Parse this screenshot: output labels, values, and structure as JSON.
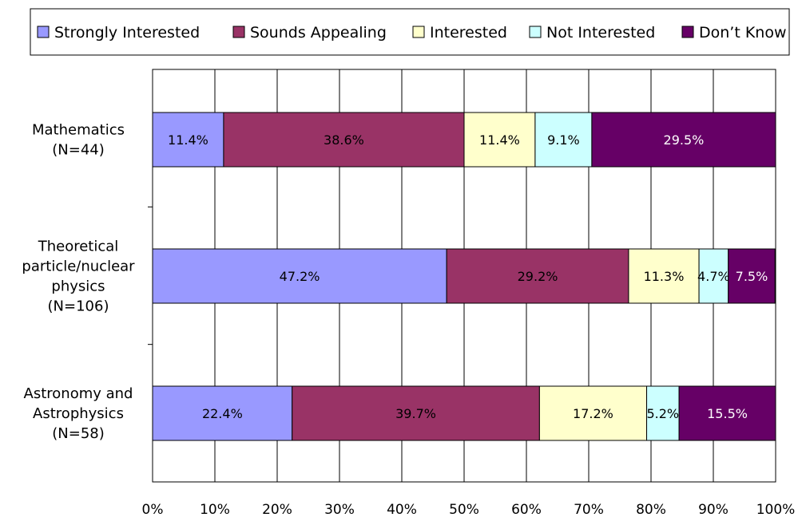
{
  "chart_data": {
    "type": "bar",
    "orientation": "horizontal",
    "stacked": true,
    "categories": [
      [
        "Mathematics",
        "(N=44)"
      ],
      [
        "Theoretical",
        "particle/nuclear",
        "physics",
        "(N=106)"
      ],
      [
        "Astronomy and",
        "Astrophysics",
        "(N=58)"
      ]
    ],
    "series": [
      {
        "name": "Strongly Interested",
        "color": "#9999ff",
        "values": [
          11.4,
          47.2,
          22.4
        ],
        "labels": [
          "11.4%",
          "47.2%",
          "22.4%"
        ]
      },
      {
        "name": "Sounds Appealing",
        "color": "#993366",
        "values": [
          38.6,
          29.2,
          39.7
        ],
        "labels": [
          "38.6%",
          "29.2%",
          "39.7%"
        ]
      },
      {
        "name": "Interested",
        "color": "#ffffcc",
        "values": [
          11.4,
          11.3,
          17.2
        ],
        "labels": [
          "11.4%",
          "11.3%",
          "17.2%"
        ]
      },
      {
        "name": "Not Interested",
        "color": "#ccffff",
        "values": [
          9.1,
          4.7,
          5.2
        ],
        "labels": [
          "9.1%",
          "4.7%",
          "5.2%"
        ]
      },
      {
        "name": "Don’t Know",
        "color": "#660066",
        "values": [
          29.5,
          7.5,
          15.5
        ],
        "labels": [
          "29.5%",
          "7.5%",
          "15.5%"
        ]
      }
    ],
    "label_colors": [
      "#000000",
      "#000000",
      "#000000",
      "#000000",
      "#ffffff"
    ],
    "xlim": [
      0,
      100
    ],
    "xticks": [
      "0%",
      "10%",
      "20%",
      "30%",
      "40%",
      "50%",
      "60%",
      "70%",
      "80%",
      "90%",
      "100%"
    ],
    "grid": "vertical",
    "legend": "top",
    "title": "",
    "xlabel": "",
    "ylabel": ""
  }
}
